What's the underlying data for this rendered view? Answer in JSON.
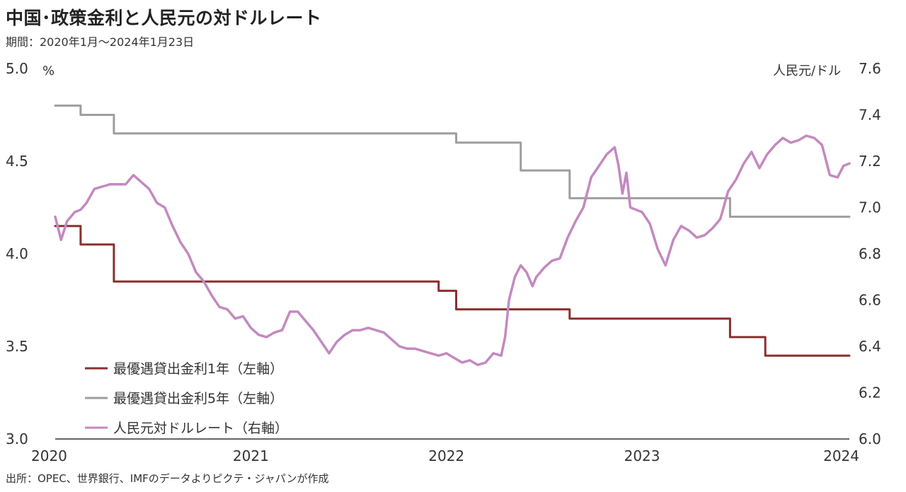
{
  "title": "中国･政策金利と人民元の対ドルレート",
  "subtitle": "期間：2020年1月～2024年1月23日",
  "source": "出所：OPEC、世界銀行、IMFのデータよりピクテ・ジャパンが作成",
  "chart_data": {
    "type": "line",
    "left_unit": "%",
    "right_unit": "人民元/ドル",
    "left_axis": {
      "min": 3.0,
      "max": 5.0,
      "ticks": [
        "3.0",
        "3.5",
        "4.0",
        "4.5",
        "5.0"
      ]
    },
    "right_axis": {
      "min": 6.0,
      "max": 7.6,
      "ticks": [
        "6.0",
        "6.2",
        "6.4",
        "6.6",
        "6.8",
        "7.0",
        "7.2",
        "7.4",
        "7.6"
      ]
    },
    "x_axis": {
      "min": 2020.0,
      "max": 2024.06,
      "ticks": [
        "2020",
        "2021",
        "2022",
        "2023",
        "2024"
      ]
    },
    "legend": [
      "最優遇貸出金利1年（左軸）",
      "最優遇貸出金利5年（左軸）",
      "人民元対ドルレート（右軸）"
    ],
    "legend_position": "bottom-left",
    "grid": false,
    "series": [
      {
        "name": "最優遇貸出金利1年（左軸）",
        "axis": "left",
        "color": "#8b2e2e",
        "step": true,
        "points": [
          [
            2020.0,
            4.15
          ],
          [
            2020.13,
            4.05
          ],
          [
            2020.3,
            3.85
          ],
          [
            2021.96,
            3.8
          ],
          [
            2022.05,
            3.7
          ],
          [
            2022.63,
            3.65
          ],
          [
            2023.45,
            3.55
          ],
          [
            2023.63,
            3.45
          ],
          [
            2024.06,
            3.45
          ]
        ]
      },
      {
        "name": "最優遇貸出金利5年（左軸）",
        "axis": "left",
        "color": "#9e9e9e",
        "step": true,
        "points": [
          [
            2020.0,
            4.8
          ],
          [
            2020.13,
            4.75
          ],
          [
            2020.3,
            4.65
          ],
          [
            2022.05,
            4.6
          ],
          [
            2022.38,
            4.45
          ],
          [
            2022.63,
            4.3
          ],
          [
            2023.45,
            4.2
          ],
          [
            2024.06,
            4.2
          ]
        ]
      },
      {
        "name": "人民元対ドルレート（右軸）",
        "axis": "right",
        "color": "#c389c0",
        "step": false,
        "points": [
          [
            2020.0,
            6.96
          ],
          [
            2020.03,
            6.86
          ],
          [
            2020.06,
            6.94
          ],
          [
            2020.1,
            6.98
          ],
          [
            2020.13,
            6.99
          ],
          [
            2020.16,
            7.02
          ],
          [
            2020.2,
            7.08
          ],
          [
            2020.24,
            7.09
          ],
          [
            2020.28,
            7.1
          ],
          [
            2020.32,
            7.1
          ],
          [
            2020.36,
            7.1
          ],
          [
            2020.4,
            7.14
          ],
          [
            2020.44,
            7.11
          ],
          [
            2020.48,
            7.08
          ],
          [
            2020.52,
            7.02
          ],
          [
            2020.56,
            7.0
          ],
          [
            2020.6,
            6.92
          ],
          [
            2020.64,
            6.85
          ],
          [
            2020.68,
            6.8
          ],
          [
            2020.72,
            6.72
          ],
          [
            2020.76,
            6.68
          ],
          [
            2020.8,
            6.62
          ],
          [
            2020.84,
            6.57
          ],
          [
            2020.88,
            6.56
          ],
          [
            2020.92,
            6.52
          ],
          [
            2020.96,
            6.53
          ],
          [
            2021.0,
            6.48
          ],
          [
            2021.04,
            6.45
          ],
          [
            2021.08,
            6.44
          ],
          [
            2021.12,
            6.46
          ],
          [
            2021.16,
            6.47
          ],
          [
            2021.2,
            6.55
          ],
          [
            2021.24,
            6.55
          ],
          [
            2021.28,
            6.51
          ],
          [
            2021.32,
            6.47
          ],
          [
            2021.36,
            6.42
          ],
          [
            2021.4,
            6.37
          ],
          [
            2021.44,
            6.42
          ],
          [
            2021.48,
            6.45
          ],
          [
            2021.52,
            6.47
          ],
          [
            2021.56,
            6.47
          ],
          [
            2021.6,
            6.48
          ],
          [
            2021.64,
            6.47
          ],
          [
            2021.68,
            6.46
          ],
          [
            2021.72,
            6.43
          ],
          [
            2021.76,
            6.4
          ],
          [
            2021.8,
            6.39
          ],
          [
            2021.84,
            6.39
          ],
          [
            2021.88,
            6.38
          ],
          [
            2021.92,
            6.37
          ],
          [
            2021.96,
            6.36
          ],
          [
            2022.0,
            6.37
          ],
          [
            2022.04,
            6.35
          ],
          [
            2022.08,
            6.33
          ],
          [
            2022.12,
            6.34
          ],
          [
            2022.16,
            6.32
          ],
          [
            2022.2,
            6.33
          ],
          [
            2022.24,
            6.37
          ],
          [
            2022.28,
            6.36
          ],
          [
            2022.3,
            6.44
          ],
          [
            2022.32,
            6.6
          ],
          [
            2022.35,
            6.7
          ],
          [
            2022.38,
            6.75
          ],
          [
            2022.41,
            6.72
          ],
          [
            2022.44,
            6.66
          ],
          [
            2022.46,
            6.7
          ],
          [
            2022.5,
            6.74
          ],
          [
            2022.54,
            6.77
          ],
          [
            2022.58,
            6.78
          ],
          [
            2022.62,
            6.87
          ],
          [
            2022.66,
            6.94
          ],
          [
            2022.7,
            7.0
          ],
          [
            2022.74,
            7.13
          ],
          [
            2022.78,
            7.18
          ],
          [
            2022.82,
            7.23
          ],
          [
            2022.86,
            7.26
          ],
          [
            2022.88,
            7.18
          ],
          [
            2022.9,
            7.06
          ],
          [
            2022.92,
            7.15
          ],
          [
            2022.94,
            7.0
          ],
          [
            2023.0,
            6.98
          ],
          [
            2023.04,
            6.93
          ],
          [
            2023.08,
            6.82
          ],
          [
            2023.12,
            6.75
          ],
          [
            2023.16,
            6.86
          ],
          [
            2023.2,
            6.92
          ],
          [
            2023.24,
            6.9
          ],
          [
            2023.28,
            6.87
          ],
          [
            2023.32,
            6.88
          ],
          [
            2023.36,
            6.91
          ],
          [
            2023.4,
            6.95
          ],
          [
            2023.44,
            7.07
          ],
          [
            2023.48,
            7.12
          ],
          [
            2023.52,
            7.19
          ],
          [
            2023.56,
            7.24
          ],
          [
            2023.6,
            7.17
          ],
          [
            2023.64,
            7.23
          ],
          [
            2023.68,
            7.27
          ],
          [
            2023.72,
            7.3
          ],
          [
            2023.76,
            7.28
          ],
          [
            2023.8,
            7.29
          ],
          [
            2023.84,
            7.31
          ],
          [
            2023.88,
            7.3
          ],
          [
            2023.92,
            7.27
          ],
          [
            2023.96,
            7.14
          ],
          [
            2024.0,
            7.13
          ],
          [
            2024.03,
            7.18
          ],
          [
            2024.06,
            7.19
          ]
        ]
      }
    ]
  }
}
